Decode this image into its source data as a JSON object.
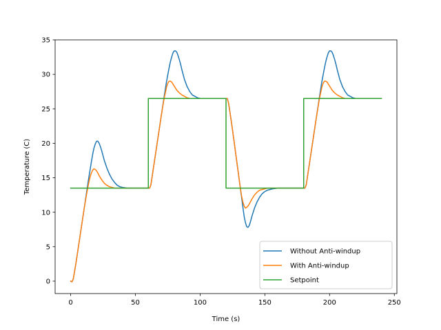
{
  "chart_data": {
    "type": "line",
    "title": "",
    "xlabel": "Time (s)",
    "ylabel": "Temperature (C)",
    "xlim": [
      -12,
      252
    ],
    "ylim": [
      -1.8,
      35
    ],
    "xticks": [
      0,
      50,
      100,
      150,
      200,
      250
    ],
    "yticks": [
      0,
      5,
      10,
      15,
      20,
      25,
      30,
      35
    ],
    "grid": false,
    "legend_position": "lower-right",
    "series": [
      {
        "name": "Without Anti-windup",
        "color": "#1f77b4",
        "x": [
          0,
          1,
          2,
          4,
          6,
          8,
          10,
          12,
          14,
          16,
          17,
          18,
          19,
          20,
          21,
          22,
          23,
          24,
          25,
          26,
          28,
          30,
          32,
          34,
          36,
          38,
          40,
          44,
          48,
          52,
          56,
          60,
          61,
          62,
          64,
          66,
          68,
          70,
          72,
          74,
          76,
          77,
          78,
          79,
          80,
          81,
          82,
          83,
          84,
          85,
          86,
          88,
          90,
          92,
          94,
          96,
          98,
          100,
          104,
          108,
          112,
          116,
          120,
          121,
          122,
          124,
          126,
          128,
          130,
          132,
          133,
          134,
          135,
          136,
          137,
          138,
          139,
          140,
          142,
          144,
          146,
          148,
          150,
          152,
          154,
          156,
          160,
          164,
          168,
          172,
          176,
          180,
          181,
          182,
          184,
          186,
          188,
          190,
          192,
          194,
          196,
          197,
          198,
          199,
          200,
          201,
          202,
          203,
          204,
          205,
          206,
          208,
          210,
          212,
          214,
          216,
          218,
          220,
          224,
          228,
          232,
          236,
          240
        ],
        "y": [
          0,
          -0.1,
          0.3,
          2.5,
          5,
          7.5,
          10,
          12.5,
          15,
          17.3,
          18.4,
          19.3,
          19.9,
          20.3,
          20.3,
          20,
          19.5,
          18.9,
          18.2,
          17.5,
          16.4,
          15.5,
          14.8,
          14.3,
          13.9,
          13.7,
          13.6,
          13.5,
          13.5,
          13.5,
          13.5,
          13.5,
          13.5,
          14,
          16.5,
          19,
          21.5,
          24,
          26.5,
          28.9,
          30.9,
          31.8,
          32.5,
          33.1,
          33.4,
          33.4,
          33.2,
          32.7,
          32.1,
          31.4,
          30.6,
          29.2,
          28.2,
          27.5,
          27,
          26.8,
          26.6,
          26.5,
          26.5,
          26.5,
          26.5,
          26.5,
          26.5,
          26.5,
          25.8,
          23.3,
          20.6,
          17.8,
          15,
          12.2,
          10.8,
          9.4,
          8.5,
          7.9,
          7.8,
          8.1,
          8.7,
          9.4,
          10.6,
          11.5,
          12.2,
          12.7,
          13,
          13.2,
          13.3,
          13.4,
          13.5,
          13.5,
          13.5,
          13.5,
          13.5,
          13.5,
          13.5,
          14,
          16.5,
          19,
          21.5,
          24,
          26.5,
          28.9,
          30.9,
          31.8,
          32.5,
          33.1,
          33.4,
          33.4,
          33.2,
          32.7,
          32.1,
          31.4,
          30.6,
          29.2,
          28.2,
          27.5,
          27,
          26.8,
          26.6,
          26.5,
          26.5,
          26.5,
          26.5,
          26.5,
          26.5
        ]
      },
      {
        "name": "With Anti-windup",
        "color": "#ff7f0e",
        "x": [
          0,
          1,
          2,
          4,
          6,
          8,
          10,
          12,
          14,
          15,
          16,
          17,
          18,
          19,
          20,
          21,
          22,
          24,
          26,
          28,
          30,
          32,
          34,
          36,
          38,
          40,
          44,
          48,
          52,
          56,
          60,
          61,
          62,
          64,
          66,
          68,
          70,
          72,
          74,
          75,
          76,
          77,
          78,
          79,
          80,
          81,
          82,
          84,
          86,
          88,
          90,
          92,
          94,
          96,
          98,
          100,
          104,
          108,
          112,
          116,
          120,
          121,
          122,
          124,
          126,
          128,
          130,
          131,
          132,
          133,
          134,
          135,
          136,
          137,
          138,
          140,
          142,
          144,
          146,
          148,
          150,
          152,
          154,
          156,
          160,
          164,
          168,
          172,
          176,
          180,
          181,
          182,
          184,
          186,
          188,
          190,
          192,
          194,
          195,
          196,
          197,
          198,
          199,
          200,
          201,
          202,
          204,
          206,
          208,
          210,
          212,
          214,
          216,
          218,
          220,
          224,
          228,
          232,
          236,
          240
        ],
        "y": [
          0,
          -0.1,
          0.3,
          2.5,
          5,
          7.5,
          10,
          12.3,
          14.3,
          15.1,
          15.7,
          16.1,
          16.3,
          16.2,
          16,
          15.7,
          15.3,
          14.7,
          14.2,
          13.9,
          13.7,
          13.6,
          13.5,
          13.5,
          13.5,
          13.5,
          13.5,
          13.5,
          13.5,
          13.5,
          13.5,
          13.5,
          14,
          16.5,
          19,
          21.5,
          24,
          26.3,
          28.1,
          28.7,
          29,
          29,
          28.9,
          28.6,
          28.3,
          28,
          27.7,
          27.3,
          27,
          26.8,
          26.6,
          26.5,
          26.5,
          26.5,
          26.5,
          26.5,
          26.5,
          26.5,
          26.5,
          26.5,
          26.5,
          26.5,
          25.8,
          23.3,
          20.6,
          17.8,
          15,
          13.6,
          12.4,
          11.5,
          10.9,
          10.6,
          10.7,
          10.9,
          11.2,
          11.9,
          12.5,
          12.9,
          13.2,
          13.3,
          13.4,
          13.5,
          13.5,
          13.5,
          13.5,
          13.5,
          13.5,
          13.5,
          13.5,
          13.5,
          13.5,
          14,
          16.5,
          19,
          21.5,
          24,
          26.3,
          28.1,
          28.7,
          29,
          29,
          28.9,
          28.6,
          28.3,
          28,
          27.7,
          27.3,
          27,
          26.8,
          26.6,
          26.5,
          26.5,
          26.5,
          26.5,
          26.5,
          26.5,
          26.5,
          26.5,
          26.5,
          26.5
        ]
      },
      {
        "name": "Setpoint",
        "color": "#2ca02c",
        "x": [
          0,
          60,
          60,
          120,
          120,
          180,
          180,
          240
        ],
        "y": [
          13.5,
          13.5,
          26.5,
          26.5,
          13.5,
          13.5,
          26.5,
          26.5
        ]
      }
    ]
  }
}
